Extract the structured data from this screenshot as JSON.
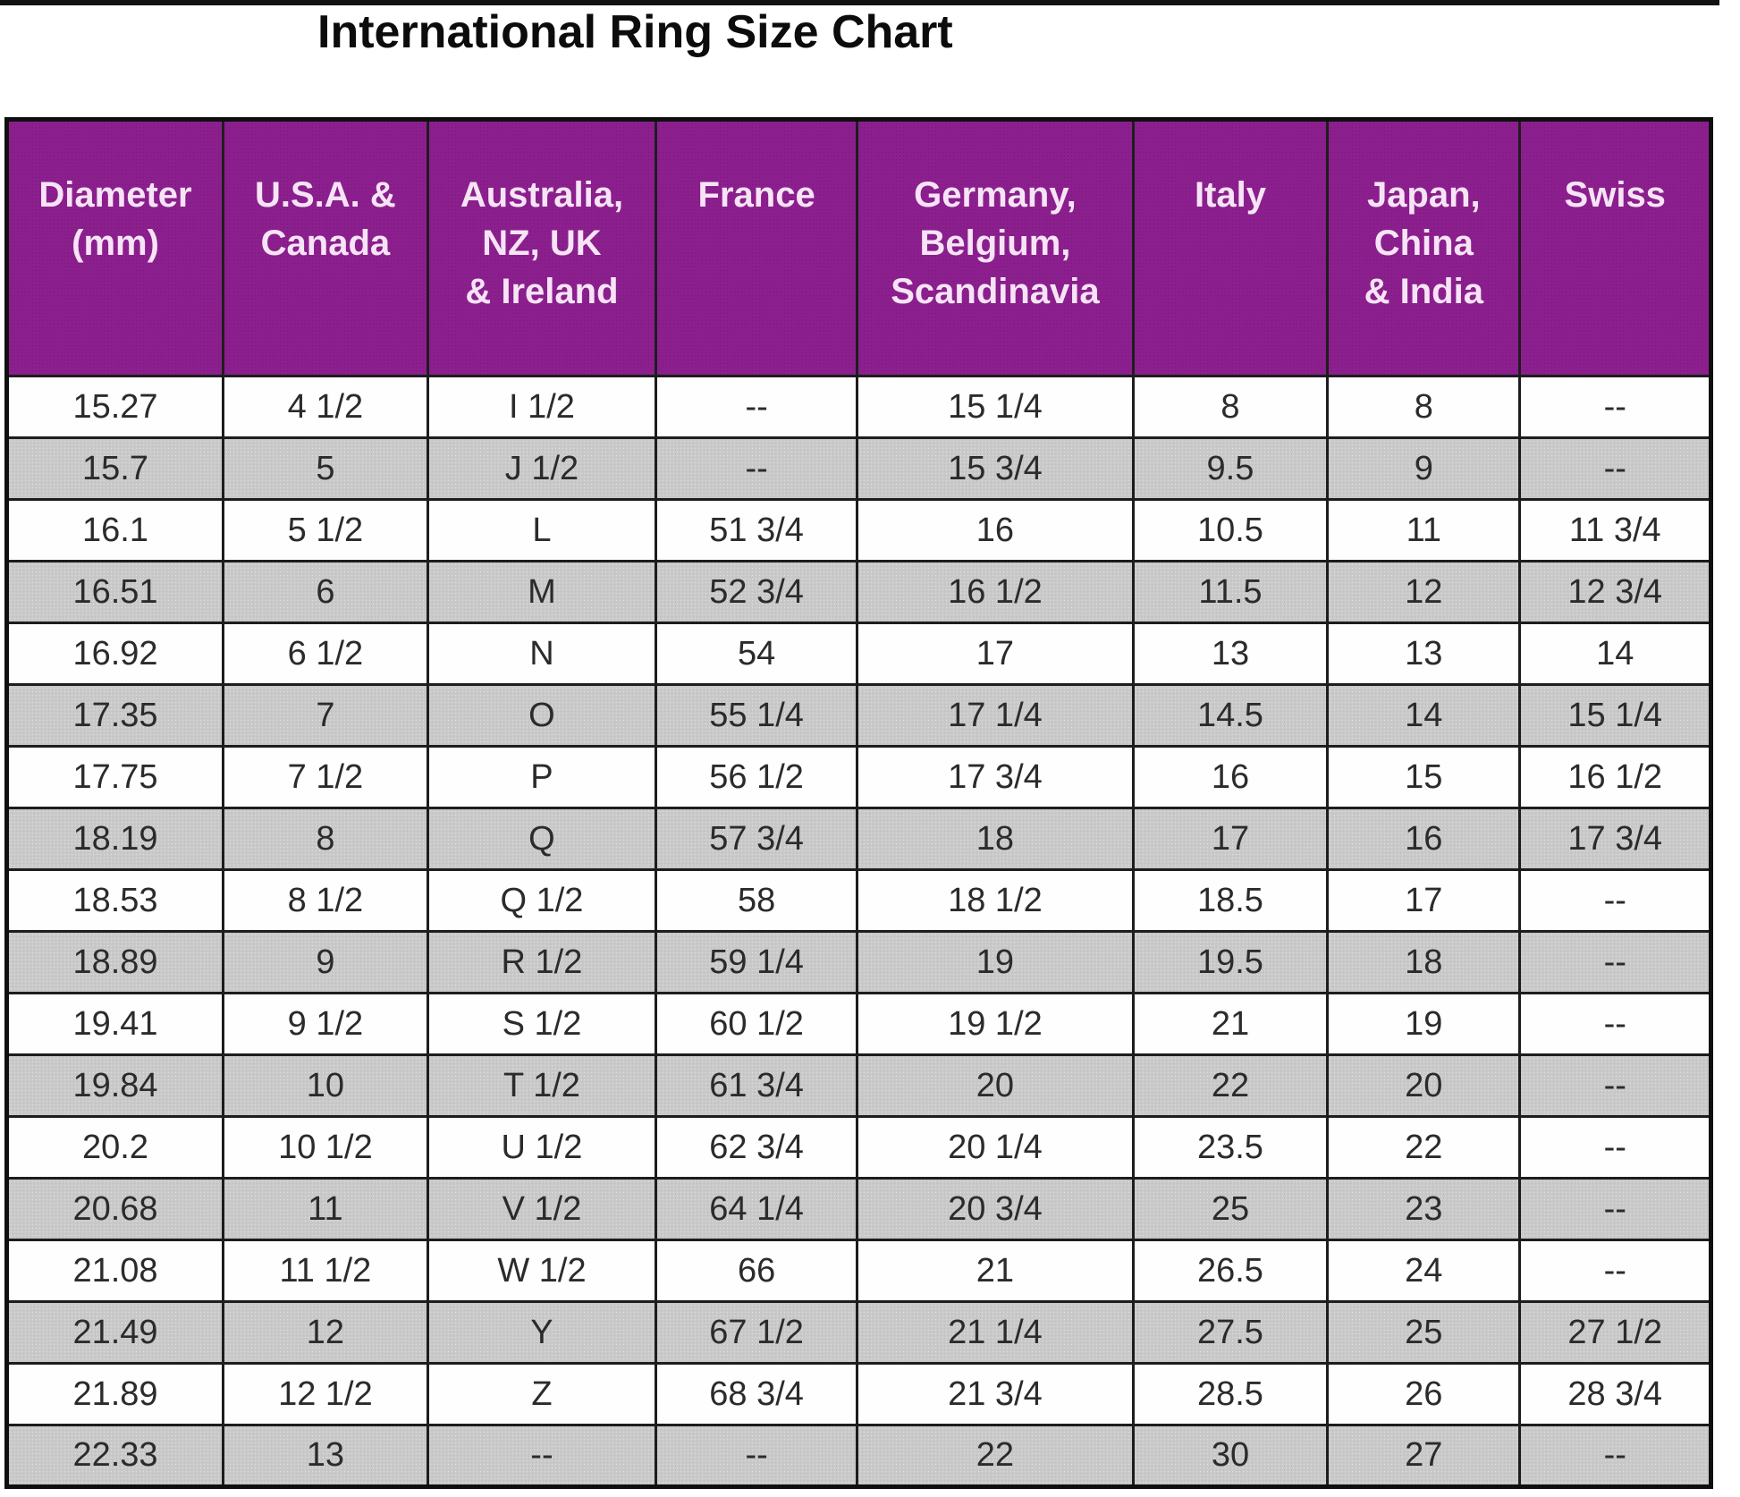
{
  "page": {
    "top_rule": "black horizontal line"
  },
  "chart_data": {
    "type": "table",
    "title": "International Ring Size Chart",
    "columns": [
      "Diameter\n(mm)",
      "U.S.A. &\nCanada",
      "Australia,\nNZ, UK\n& Ireland",
      "France",
      "Germany,\nBelgium,\nScandinavia",
      "Italy",
      "Japan,\nChina\n& India",
      "Swiss"
    ],
    "rows": [
      [
        "15.27",
        "4 1/2",
        "I 1/2",
        "--",
        "15 1/4",
        "8",
        "8",
        "--"
      ],
      [
        "15.7",
        "5",
        "J 1/2",
        "--",
        "15 3/4",
        "9.5",
        "9",
        "--"
      ],
      [
        "16.1",
        "5 1/2",
        "L",
        "51 3/4",
        "16",
        "10.5",
        "11",
        "11 3/4"
      ],
      [
        "16.51",
        "6",
        "M",
        "52 3/4",
        "16 1/2",
        "11.5",
        "12",
        "12 3/4"
      ],
      [
        "16.92",
        "6 1/2",
        "N",
        "54",
        "17",
        "13",
        "13",
        "14"
      ],
      [
        "17.35",
        "7",
        "O",
        "55 1/4",
        "17 1/4",
        "14.5",
        "14",
        "15 1/4"
      ],
      [
        "17.75",
        "7 1/2",
        "P",
        "56 1/2",
        "17 3/4",
        "16",
        "15",
        "16 1/2"
      ],
      [
        "18.19",
        "8",
        "Q",
        "57 3/4",
        "18",
        "17",
        "16",
        "17 3/4"
      ],
      [
        "18.53",
        "8 1/2",
        "Q 1/2",
        "58",
        "18 1/2",
        "18.5",
        "17",
        "--"
      ],
      [
        "18.89",
        "9",
        "R 1/2",
        "59 1/4",
        "19",
        "19.5",
        "18",
        "--"
      ],
      [
        "19.41",
        "9 1/2",
        "S 1/2",
        "60 1/2",
        "19 1/2",
        "21",
        "19",
        "--"
      ],
      [
        "19.84",
        "10",
        "T 1/2",
        "61 3/4",
        "20",
        "22",
        "20",
        "--"
      ],
      [
        "20.2",
        "10 1/2",
        "U 1/2",
        "62 3/4",
        "20 1/4",
        "23.5",
        "22",
        "--"
      ],
      [
        "20.68",
        "11",
        "V 1/2",
        "64 1/4",
        "20 3/4",
        "25",
        "23",
        "--"
      ],
      [
        "21.08",
        "11 1/2",
        "W 1/2",
        "66",
        "21",
        "26.5",
        "24",
        "--"
      ],
      [
        "21.49",
        "12",
        "Y",
        "67 1/2",
        "21 1/4",
        "27.5",
        "25",
        "27 1/2"
      ],
      [
        "21.89",
        "12 1/2",
        "Z",
        "68 3/4",
        "21 3/4",
        "28.5",
        "26",
        "28 3/4"
      ],
      [
        "22.33",
        "13",
        "--",
        "--",
        "22",
        "30",
        "27",
        "--"
      ]
    ],
    "empty_marker": "--",
    "layout": {
      "zebra_striping": "alternating white and gray rows, first data row white",
      "header_position": "top",
      "grid": true
    }
  },
  "colors": {
    "header_bg": "#8C1F8E",
    "header_text": "#F6E4F6",
    "row_gray": "#C9C9C9",
    "row_white": "#FEFEFE",
    "border": "#1D1D1D",
    "cell_text": "#2B2B2B",
    "title_text": "#0C0C0C"
  }
}
